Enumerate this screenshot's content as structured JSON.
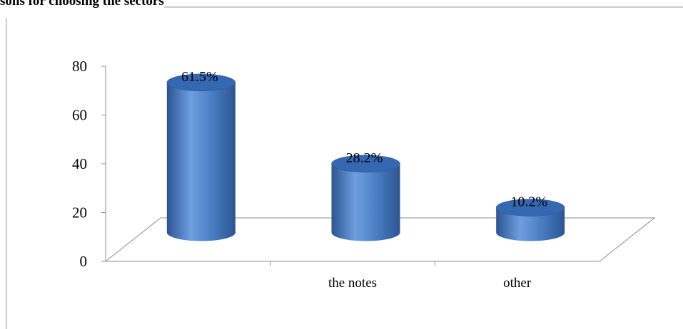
{
  "chart_data": {
    "type": "bar",
    "title": "sons for choosing the sectors",
    "categories": [
      "",
      "the notes",
      "other"
    ],
    "values": [
      61.5,
      28.2,
      10.2
    ],
    "value_labels": [
      "61.5%",
      "28.2%",
      "10.2%"
    ],
    "ylim": [
      0,
      80
    ],
    "yticks": [
      "0",
      "20",
      "40",
      "60",
      "80"
    ],
    "grid": false,
    "legend": "none",
    "bar_style": "3d-cylinder",
    "colors": {
      "bar": "#4a7ec3",
      "bar_dark": "#2b5591",
      "bar_light": "#6e9ee0",
      "bar_top": "#3568b2",
      "floor": "#8c8c8c"
    }
  }
}
